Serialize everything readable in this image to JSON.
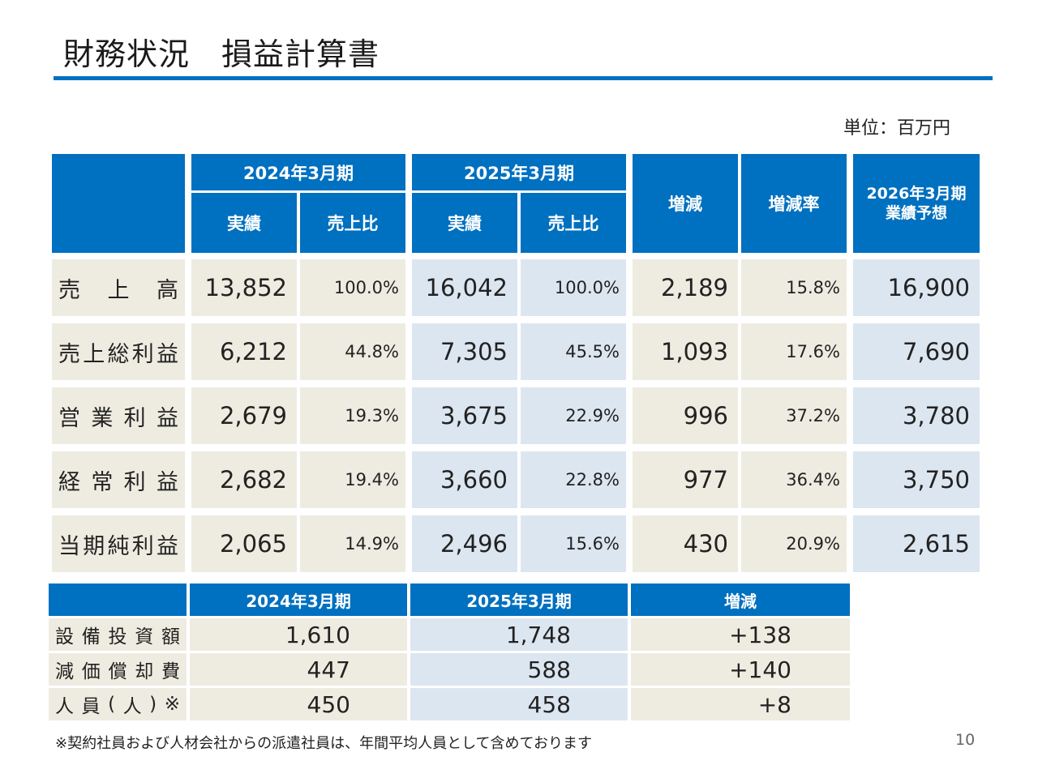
{
  "title": "財務状況　損益計算書",
  "unit": "単位：百万円",
  "main_table": {
    "header": {
      "fy2024": "2024年3月期",
      "fy2025": "2025年3月期",
      "actual": "実績",
      "ratio": "売上比",
      "change": "増減",
      "change_rate": "増減率",
      "forecast_line1": "2026年3月期",
      "forecast_line2": "業績予想"
    },
    "rows": [
      {
        "label": "売上高",
        "v2024": "13,852",
        "r2024": "100.0%",
        "v2025": "16,042",
        "r2025": "100.0%",
        "change": "2,189",
        "rate": "15.8%",
        "forecast": "16,900"
      },
      {
        "label": "売上総利益",
        "v2024": "6,212",
        "r2024": "44.8%",
        "v2025": "7,305",
        "r2025": "45.5%",
        "change": "1,093",
        "rate": "17.6%",
        "forecast": "7,690"
      },
      {
        "label": "営業利益",
        "v2024": "2,679",
        "r2024": "19.3%",
        "v2025": "3,675",
        "r2025": "22.9%",
        "change": "996",
        "rate": "37.2%",
        "forecast": "3,780"
      },
      {
        "label": "経常利益",
        "v2024": "2,682",
        "r2024": "19.4%",
        "v2025": "3,660",
        "r2025": "22.8%",
        "change": "977",
        "rate": "36.4%",
        "forecast": "3,750"
      },
      {
        "label": "当期純利益",
        "v2024": "2,065",
        "r2024": "14.9%",
        "v2025": "2,496",
        "r2025": "15.6%",
        "change": "430",
        "rate": "20.9%",
        "forecast": "2,615"
      }
    ]
  },
  "sub_table": {
    "header": {
      "fy2024": "2024年3月期",
      "fy2025": "2025年3月期",
      "change": "増減"
    },
    "rows": [
      {
        "label": "設備投資額",
        "v2024": "1,610",
        "v2025": "1,748",
        "change": "+138"
      },
      {
        "label": "減価償却費",
        "v2024": "447",
        "v2025": "588",
        "change": "+140"
      },
      {
        "label": "人員(人)※",
        "v2024": "450",
        "v2025": "458",
        "change": "+8"
      }
    ]
  },
  "footnote": "※契約社員および人材会社からの派遣社員は、年間平均人員として含めております",
  "page_number": "10"
}
